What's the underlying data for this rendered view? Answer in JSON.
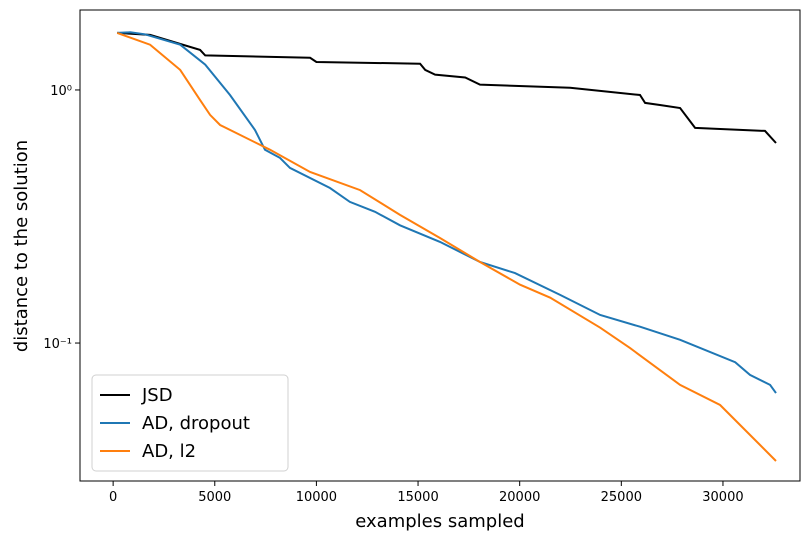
{
  "chart_data": {
    "type": "line",
    "xlabel": "examples sampled",
    "ylabel": "distance to the solution",
    "xlim": [
      -1630,
      33790
    ],
    "ylim": [
      0.0285,
      2.07
    ],
    "yscale": "log",
    "xticks": [
      0,
      5000,
      10000,
      15000,
      20000,
      25000,
      30000
    ],
    "yticks": [
      {
        "value": 1,
        "label": "10⁰"
      },
      {
        "value": 0.1,
        "label": "10⁻¹"
      }
    ],
    "legend": "lower left",
    "series": [
      {
        "name": "JSD",
        "color": "#000000",
        "x": [
          200,
          1820,
          4280,
          4530,
          9690,
          10000,
          15100,
          15350,
          15840,
          17320,
          18050,
          22480,
          25920,
          26170,
          26900,
          27890,
          28630,
          32070,
          32610
        ],
        "values": [
          1.68,
          1.65,
          1.44,
          1.37,
          1.34,
          1.29,
          1.27,
          1.2,
          1.15,
          1.12,
          1.05,
          1.02,
          0.955,
          0.889,
          0.872,
          0.849,
          0.708,
          0.689,
          0.617
        ]
      },
      {
        "name": "AD, dropout",
        "color": "#1f77b4",
        "x": [
          200,
          840,
          1570,
          3300,
          4530,
          5750,
          6980,
          7470,
          8210,
          8700,
          10670,
          11650,
          12880,
          14110,
          16080,
          18050,
          19770,
          21990,
          23960,
          25920,
          27890,
          30600,
          31330,
          32320,
          32610
        ],
        "values": [
          1.68,
          1.69,
          1.66,
          1.51,
          1.26,
          0.955,
          0.695,
          0.58,
          0.539,
          0.492,
          0.41,
          0.361,
          0.33,
          0.292,
          0.251,
          0.209,
          0.189,
          0.155,
          0.129,
          0.116,
          0.103,
          0.084,
          0.0748,
          0.0683,
          0.0634
        ]
      },
      {
        "name": "AD, l2",
        "color": "#ff7f0e",
        "x": [
          200,
          1820,
          3300,
          4280,
          4770,
          5260,
          7720,
          9690,
          12150,
          14110,
          16080,
          18050,
          20020,
          21500,
          23960,
          25430,
          27890,
          29860,
          32610
        ],
        "values": [
          1.68,
          1.51,
          1.2,
          0.912,
          0.797,
          0.727,
          0.58,
          0.474,
          0.402,
          0.321,
          0.26,
          0.209,
          0.17,
          0.151,
          0.115,
          0.0955,
          0.0683,
          0.0569,
          0.0342
        ]
      }
    ]
  }
}
